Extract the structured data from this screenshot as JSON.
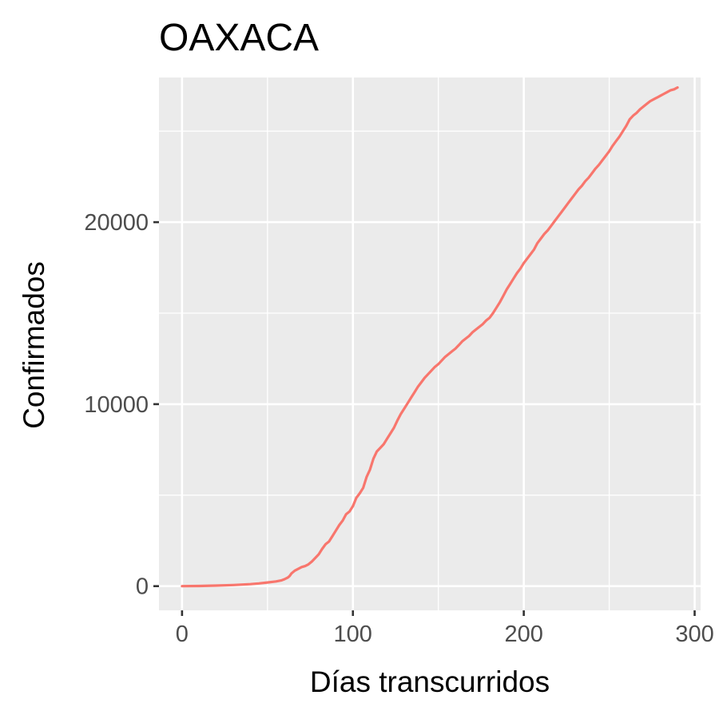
{
  "chart_data": {
    "type": "line",
    "title": "OAXACA",
    "xlabel": "Días transcurridos",
    "ylabel": "Confirmados",
    "xlim": [
      -13.5,
      303.5
    ],
    "ylim": [
      -1330,
      27950
    ],
    "x_ticks": [
      0,
      100,
      200,
      300
    ],
    "x_tick_labels": [
      "0",
      "100",
      "200",
      "300"
    ],
    "y_ticks": [
      0,
      10000,
      20000
    ],
    "y_tick_labels": [
      "0",
      "10000",
      "20000"
    ],
    "x_minor": [
      50,
      150,
      250
    ],
    "y_minor": [
      5000,
      15000,
      25000
    ],
    "grid": true,
    "legend": "none",
    "series": [
      {
        "color": "#f8766d",
        "x": [
          0,
          10,
          20,
          30,
          40,
          45,
          50,
          55,
          58,
          60,
          62,
          63,
          64,
          66,
          68,
          70,
          72,
          74,
          76,
          78,
          80,
          82,
          84,
          86,
          88,
          90,
          92,
          94,
          96,
          98,
          100,
          102,
          104,
          106,
          108,
          110,
          112,
          114,
          116,
          118,
          120,
          122,
          124,
          126,
          128,
          130,
          132,
          134,
          136,
          138,
          140,
          142,
          144,
          146,
          148,
          150,
          152,
          154,
          156,
          158,
          160,
          162,
          164,
          166,
          168,
          170,
          172,
          174,
          176,
          178,
          180,
          182,
          184,
          186,
          188,
          190,
          192,
          194,
          196,
          198,
          200,
          202,
          204,
          206,
          208,
          210,
          212,
          214,
          216,
          218,
          220,
          222,
          224,
          226,
          228,
          230,
          232,
          234,
          236,
          238,
          240,
          242,
          244,
          246,
          248,
          250,
          252,
          254,
          256,
          258,
          260,
          262,
          264,
          266,
          268,
          270,
          272,
          274,
          276,
          278,
          280,
          282,
          284,
          286,
          288,
          290
        ],
        "y": [
          0,
          10,
          30,
          60,
          110,
          150,
          200,
          260,
          310,
          380,
          480,
          560,
          700,
          850,
          950,
          1050,
          1100,
          1200,
          1350,
          1550,
          1750,
          2050,
          2300,
          2450,
          2750,
          3050,
          3350,
          3600,
          3950,
          4100,
          4400,
          4850,
          5100,
          5400,
          6000,
          6400,
          7000,
          7400,
          7600,
          7800,
          8100,
          8400,
          8700,
          9100,
          9450,
          9750,
          10050,
          10350,
          10650,
          10950,
          11200,
          11450,
          11650,
          11850,
          12050,
          12200,
          12400,
          12600,
          12750,
          12900,
          13050,
          13250,
          13450,
          13600,
          13750,
          13950,
          14100,
          14250,
          14400,
          14600,
          14750,
          15000,
          15300,
          15600,
          15950,
          16300,
          16600,
          16900,
          17200,
          17450,
          17750,
          18000,
          18250,
          18500,
          18850,
          19100,
          19350,
          19550,
          19800,
          20050,
          20300,
          20550,
          20800,
          21050,
          21300,
          21550,
          21800,
          22000,
          22250,
          22450,
          22700,
          22950,
          23150,
          23400,
          23650,
          23900,
          24200,
          24450,
          24700,
          25000,
          25300,
          25650,
          25850,
          26000,
          26200,
          26350,
          26500,
          26650,
          26750,
          26850,
          26950,
          27050,
          27150,
          27250,
          27300,
          27400
        ]
      }
    ]
  }
}
